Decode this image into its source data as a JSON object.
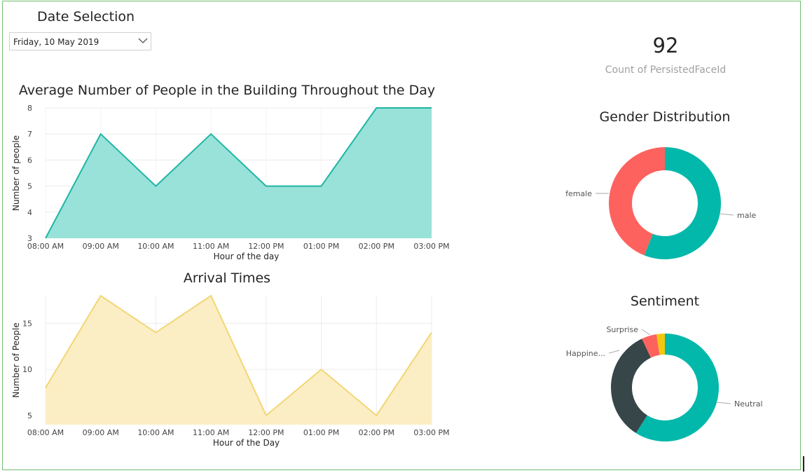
{
  "date_selection": {
    "title": "Date Selection",
    "selected": "Friday, 10 May 2019",
    "chevron_icon": "chevron-down-icon"
  },
  "kpi": {
    "value": "92",
    "label": "Count of PersistedFaceId"
  },
  "chart_data": [
    {
      "type": "area",
      "title": "Average Number of People in the Building Throughout the Day",
      "xlabel": "Hour of the day",
      "ylabel": "Number of people",
      "x": [
        "08:00 AM",
        "09:00 AM",
        "10:00 AM",
        "11:00 AM",
        "12:00 PM",
        "01:00 PM",
        "02:00 PM",
        "03:00 PM"
      ],
      "series": [
        {
          "values": [
            3,
            7,
            5,
            7,
            5,
            5,
            8,
            8
          ]
        }
      ],
      "ylim": [
        3,
        8
      ],
      "yticks": [
        3,
        4,
        5,
        6,
        7,
        8
      ],
      "grid": true,
      "colors": {
        "line": "#1fb5a5",
        "fill": "#99e2d9"
      }
    },
    {
      "type": "area",
      "title": "Arrival Times",
      "xlabel": "Hour of the Day",
      "ylabel": "Number of People",
      "x": [
        "08:00 AM",
        "09:00 AM",
        "10:00 AM",
        "11:00 AM",
        "12:00 PM",
        "01:00 PM",
        "02:00 PM",
        "03:00 PM"
      ],
      "series": [
        {
          "values": [
            8,
            18,
            14,
            18,
            5,
            10,
            5,
            14
          ]
        }
      ],
      "ylim": [
        4,
        18
      ],
      "yticks": [
        5,
        10,
        15
      ],
      "grid": true,
      "colors": {
        "line": "#f3d675",
        "fill": "#fbeec4"
      }
    },
    {
      "type": "pie",
      "title": "Gender Distribution",
      "labels": [
        "male",
        "female"
      ],
      "values": [
        56,
        44
      ],
      "colors": [
        "#01b8aa",
        "#fd625e"
      ]
    },
    {
      "type": "pie",
      "title": "Sentiment",
      "labels": [
        "Neutral",
        "Happine...",
        "Surprise",
        ""
      ],
      "values": [
        59,
        34,
        4.5,
        2.5
      ],
      "colors": [
        "#01b8aa",
        "#374649",
        "#fd625e",
        "#f2c80f"
      ]
    }
  ]
}
